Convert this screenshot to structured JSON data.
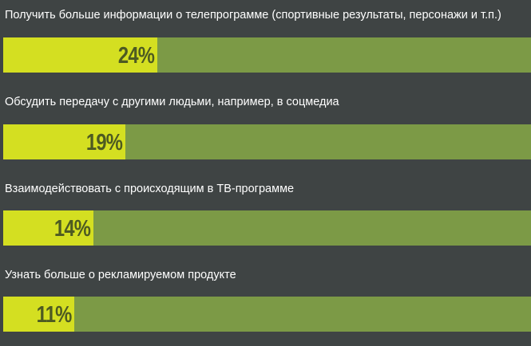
{
  "colors": {
    "background": "#3f4444",
    "bar_fill": "#d4df21",
    "bar_track": "#7c9a46",
    "value_text": "#4d5a22",
    "label_text": "#ffffff"
  },
  "chart_data": {
    "type": "bar",
    "orientation": "horizontal",
    "categories": [
      "Получить больше информации о телепрограмме (спортивные результаты, персонажи и т.п.)",
      "Обсудить передачу с другими людьми, например, в соцмедиа",
      "Взаимодействовать с происходящим в ТВ-программе",
      "Узнать больше о рекламируемом продукте"
    ],
    "values": [
      24,
      19,
      14,
      11
    ],
    "value_labels": [
      "24%",
      "19%",
      "14%",
      "11%"
    ],
    "title": "",
    "xlabel": "",
    "ylabel": "",
    "xlim": [
      0,
      82
    ],
    "grid": false,
    "legend": "none"
  }
}
